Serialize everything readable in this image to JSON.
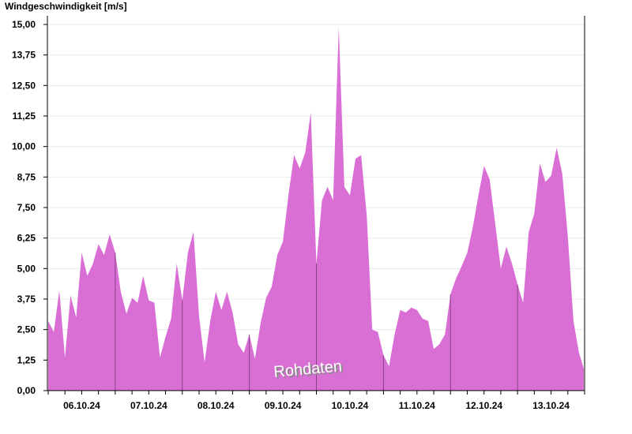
{
  "chart_data": {
    "type": "area",
    "title": "Windgeschwindigkeit [m/s]",
    "xlabel": "",
    "ylabel": "",
    "annotation": "Rohdaten",
    "ylim": [
      0,
      15
    ],
    "y_ticks": [
      "0,00",
      "1,25",
      "2,50",
      "3,75",
      "5,00",
      "6,25",
      "7,50",
      "8,75",
      "10,00",
      "11,25",
      "12,50",
      "13,75",
      "15,00"
    ],
    "x_tick_labels": [
      "06.10.24",
      "07.10.24",
      "08.10.24",
      "09.10.24",
      "10.10.24",
      "11.10.24",
      "12.10.24",
      "13.10.24"
    ],
    "x_range": [
      "2024-10-06 00:00",
      "2024-10-14 00:00"
    ],
    "grid": true,
    "fill_color": "#d96fd5",
    "day_line_color": "#8a4088",
    "x_step_hours": 2,
    "x_first": "2024-10-06 00:00",
    "values": [
      2.85,
      2.4,
      4.1,
      1.35,
      3.9,
      3.0,
      5.65,
      4.7,
      5.2,
      6.0,
      5.55,
      6.4,
      5.65,
      4.05,
      3.15,
      3.8,
      3.6,
      4.7,
      3.7,
      3.6,
      1.35,
      2.2,
      2.95,
      5.2,
      3.7,
      5.65,
      6.5,
      3.05,
      1.15,
      2.85,
      4.05,
      3.3,
      4.05,
      3.2,
      1.9,
      1.55,
      2.3,
      1.3,
      2.75,
      3.8,
      4.25,
      5.55,
      6.1,
      8.0,
      9.65,
      9.1,
      9.75,
      11.4,
      5.2,
      7.8,
      8.35,
      7.8,
      14.9,
      8.35,
      8.0,
      9.5,
      9.65,
      7.2,
      2.5,
      2.4,
      1.45,
      1.0,
      2.3,
      3.3,
      3.2,
      3.4,
      3.3,
      2.95,
      2.85,
      1.7,
      1.9,
      2.3,
      3.95,
      4.6,
      5.1,
      5.65,
      6.7,
      8.0,
      9.2,
      8.65,
      6.85,
      5.0,
      5.9,
      5.2,
      4.35,
      3.6,
      6.5,
      7.25,
      9.3,
      8.55,
      8.8,
      9.95,
      8.9,
      6.3,
      2.85,
      1.55,
      0.9
    ]
  }
}
